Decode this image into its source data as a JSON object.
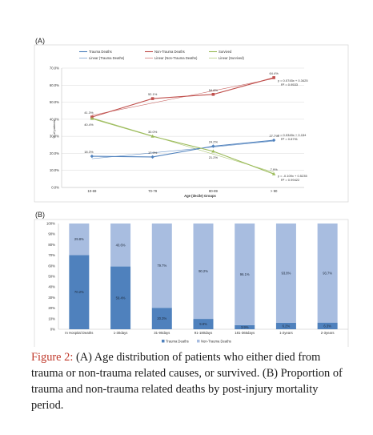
{
  "figure": {
    "caption_label": "Figure 2:",
    "caption_text": " (A) Age distribution of patients who either died from trauma or non-trauma related causes, or survived. (B) Proportion of trauma and non-trauma related deaths by post-injury mortality period."
  },
  "chart_data": [
    {
      "type": "line",
      "panel_label": "(A)",
      "categories": [
        "10-69",
        "70-79",
        "80-89",
        "> 90"
      ],
      "xlabel": "Age (decile) Groups",
      "ylabel": "% of patients",
      "ylim": [
        0,
        70
      ],
      "yticks": [
        "0.0%",
        "10.0%",
        "20.0%",
        "30.0%",
        "40.0%",
        "50.0%",
        "60.0%",
        "70.0%"
      ],
      "grid": true,
      "legend_position": "top",
      "series": [
        {
          "name": "Trauma Deaths",
          "values": [
            18.3,
            17.9,
            24.2,
            27.7
          ],
          "labels": [
            "18.3%",
            "17.9%",
            "24.2%",
            "27.7%"
          ],
          "color": "#4f81bd",
          "marker": "diamond"
        },
        {
          "name": "Non-Trauma Deaths",
          "values": [
            41.3,
            52.1,
            54.6,
            64.4
          ],
          "labels": [
            "41.3%",
            "52.1%",
            "54.6%",
            "64.4%"
          ],
          "color": "#c0504d",
          "marker": "square"
        },
        {
          "name": "Survived",
          "values": [
            40.4,
            30.0,
            21.2,
            7.9
          ],
          "labels": [
            "40.4%",
            "30.0%",
            "21.2%",
            "7.9%"
          ],
          "color": "#9bbb59",
          "marker": "triangle"
        }
      ],
      "trendlines": [
        {
          "name": "Linear (Trauma Deaths)",
          "color": "#4f81bd",
          "equation": "y = 0.0345x + 0.154",
          "r2": "R² = 0.8791"
        },
        {
          "name": "Linear (Non-Trauma Deaths)",
          "color": "#c0504d",
          "equation": "y = 0.0745x + 0.3425",
          "r2": "R² = 0.9533"
        },
        {
          "name": "Linear (Survived)",
          "color": "#9bbb59",
          "equation": "y = -0.109x + 0.5235",
          "r2": "R² = 0.99422"
        }
      ]
    },
    {
      "type": "bar",
      "stacked": true,
      "panel_label": "(B)",
      "categories": [
        "In Hospital Deaths",
        "1-30days",
        "31-90days",
        "91-180days",
        "181-365days",
        "1-2years",
        "2-3years"
      ],
      "ylim": [
        0,
        100
      ],
      "yticks": [
        "0%",
        "10%",
        "20%",
        "30%",
        "40%",
        "50%",
        "60%",
        "70%",
        "80%",
        "90%",
        "100%"
      ],
      "legend_position": "bottom",
      "series": [
        {
          "name": "Trauma Deaths",
          "color": "#4f81bd",
          "values": [
            70.2,
            59.4,
            20.3,
            9.8,
            3.9,
            6.2,
            6.3
          ],
          "labels": [
            "70.2%",
            "59.4%",
            "20.3%",
            "9.8%",
            "3.9%",
            "6.2%",
            "6.3%"
          ]
        },
        {
          "name": "Non-Trauma Deaths",
          "color": "#a8bde0",
          "values": [
            29.8,
            40.6,
            79.7,
            90.2,
            96.1,
            93.8,
            93.7
          ],
          "labels": [
            "29.8%",
            "40.6%",
            "79.7%",
            "90.2%",
            "96.1%",
            "93.8%",
            "93.7%"
          ]
        }
      ]
    }
  ]
}
